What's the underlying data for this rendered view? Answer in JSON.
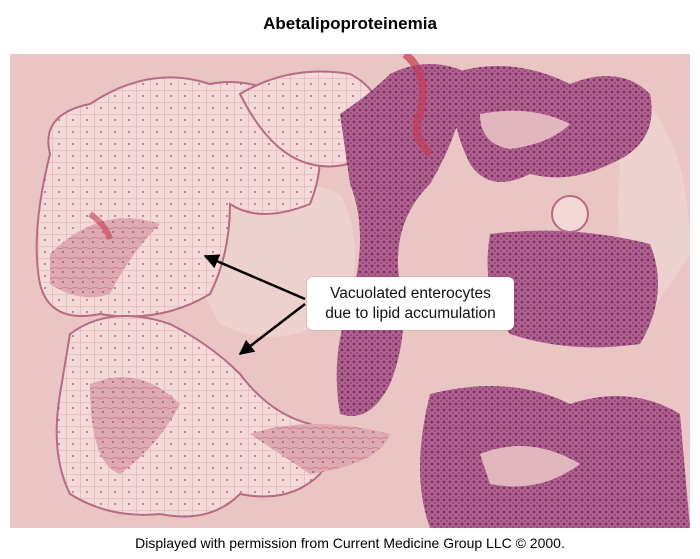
{
  "title": "Abetalipoproteinemia",
  "callout": {
    "line1": "Vacuolated enterocytes",
    "line2": "due to lipid accumulation"
  },
  "credit": "Displayed with permission from Current Medicine Group LLC © 2000.",
  "figure": {
    "subject": "H&E stained intestinal mucosa micrograph",
    "colors": {
      "background": "#e8c4c1",
      "vacuolated_epithelium": "#f1d5d4",
      "cell_outline": "#c77c8f",
      "nuclei": "#8e3d6a",
      "normal_epithelium": "#a8548a",
      "stroma": "#d99aa6",
      "arrow": "#000000"
    },
    "icons": [
      "arrow-icon"
    ]
  }
}
